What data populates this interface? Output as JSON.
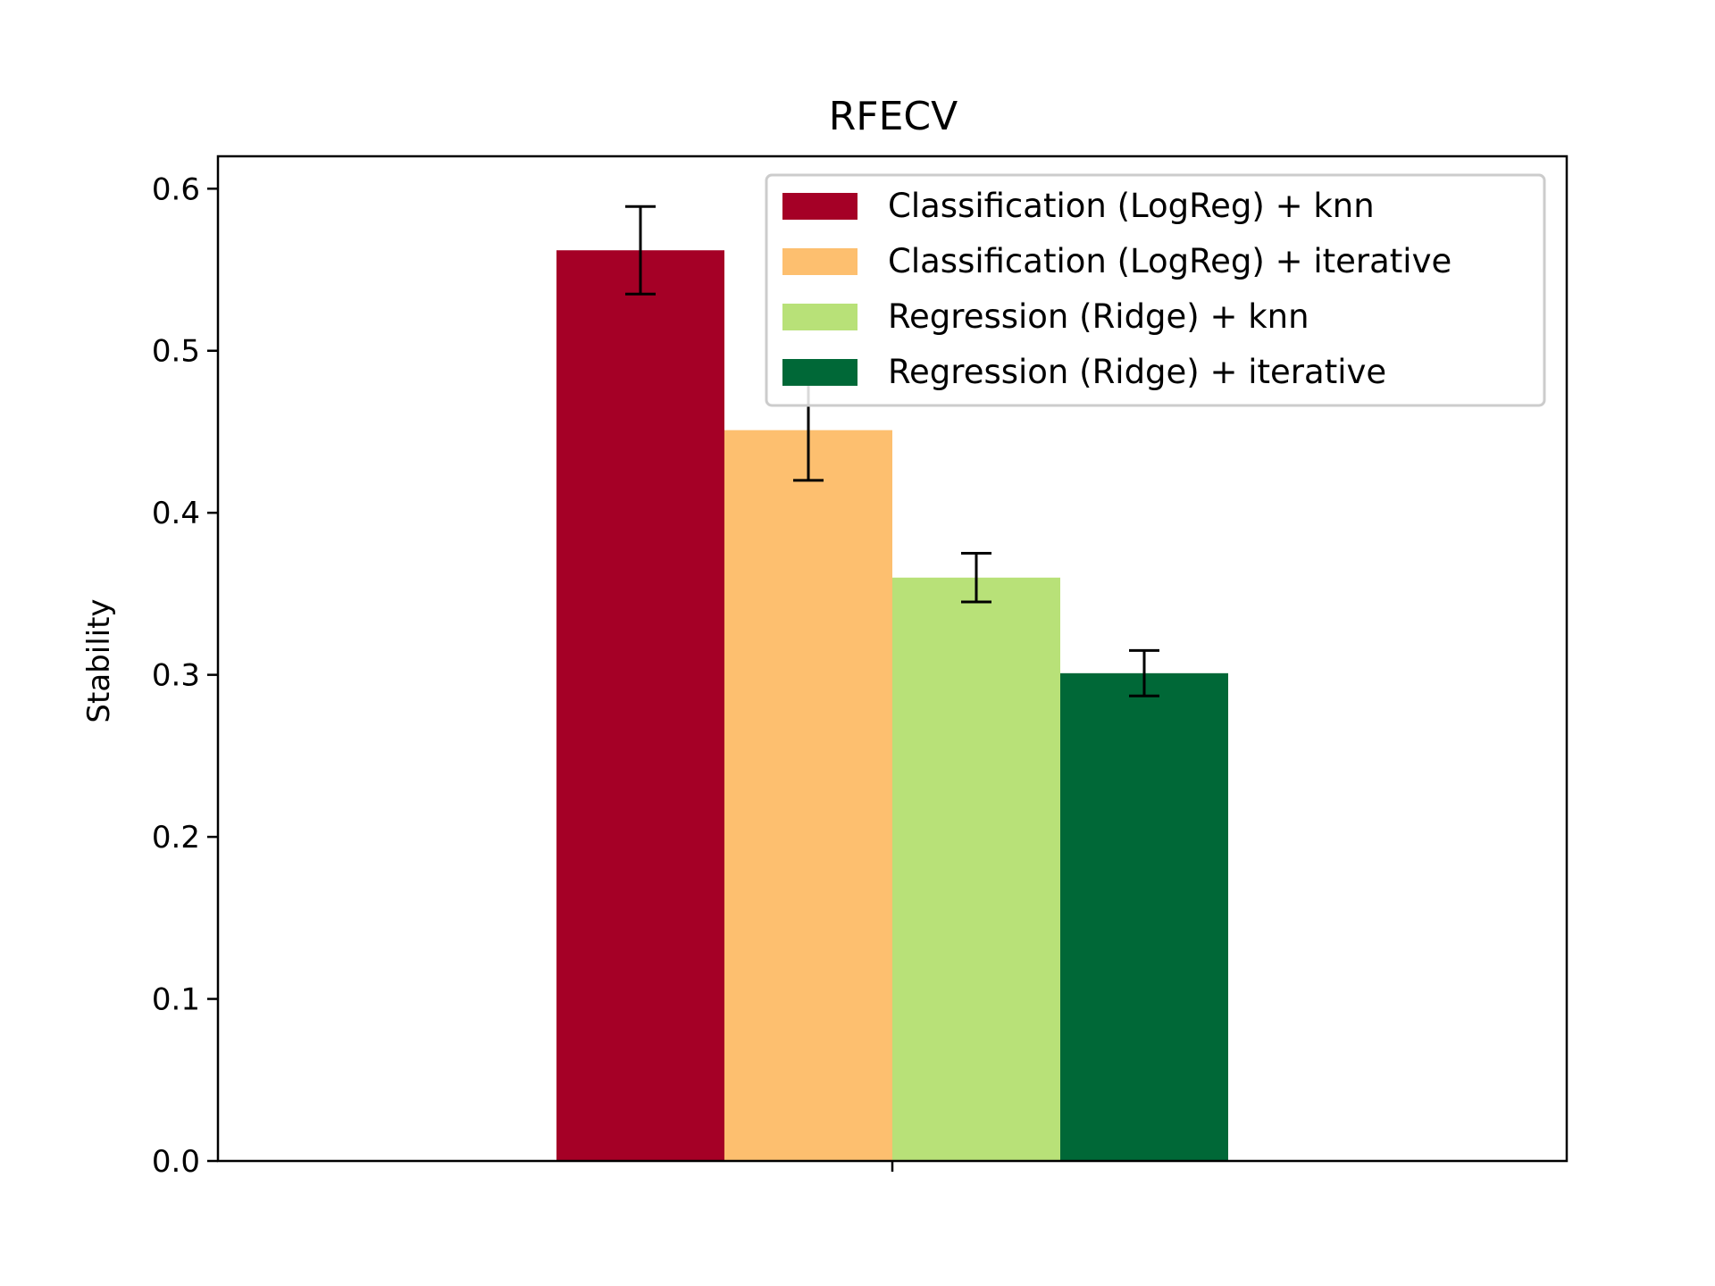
{
  "chart_data": {
    "type": "bar",
    "title": "RFECV",
    "xlabel": "",
    "ylabel": "Stability",
    "ylim": [
      0,
      0.62
    ],
    "yticks": [
      "0.0",
      "0.1",
      "0.2",
      "0.3",
      "0.4",
      "0.5",
      "0.6"
    ],
    "grid": false,
    "legend_position": "top-right",
    "categories": [
      ""
    ],
    "series": [
      {
        "name": "Classification (LogReg) + knn",
        "values": [
          0.562
        ],
        "error": [
          0.027
        ],
        "color": "#a50026"
      },
      {
        "name": "Classification (LogReg) + iterative",
        "values": [
          0.451
        ],
        "error": [
          0.031
        ],
        "color": "#fdbf6f"
      },
      {
        "name": "Regression (Ridge) + knn",
        "values": [
          0.36
        ],
        "error": [
          0.015
        ],
        "color": "#b8e178"
      },
      {
        "name": "Regression (Ridge) + iterative",
        "values": [
          0.301
        ],
        "error": [
          0.014
        ],
        "color": "#006837"
      }
    ]
  }
}
